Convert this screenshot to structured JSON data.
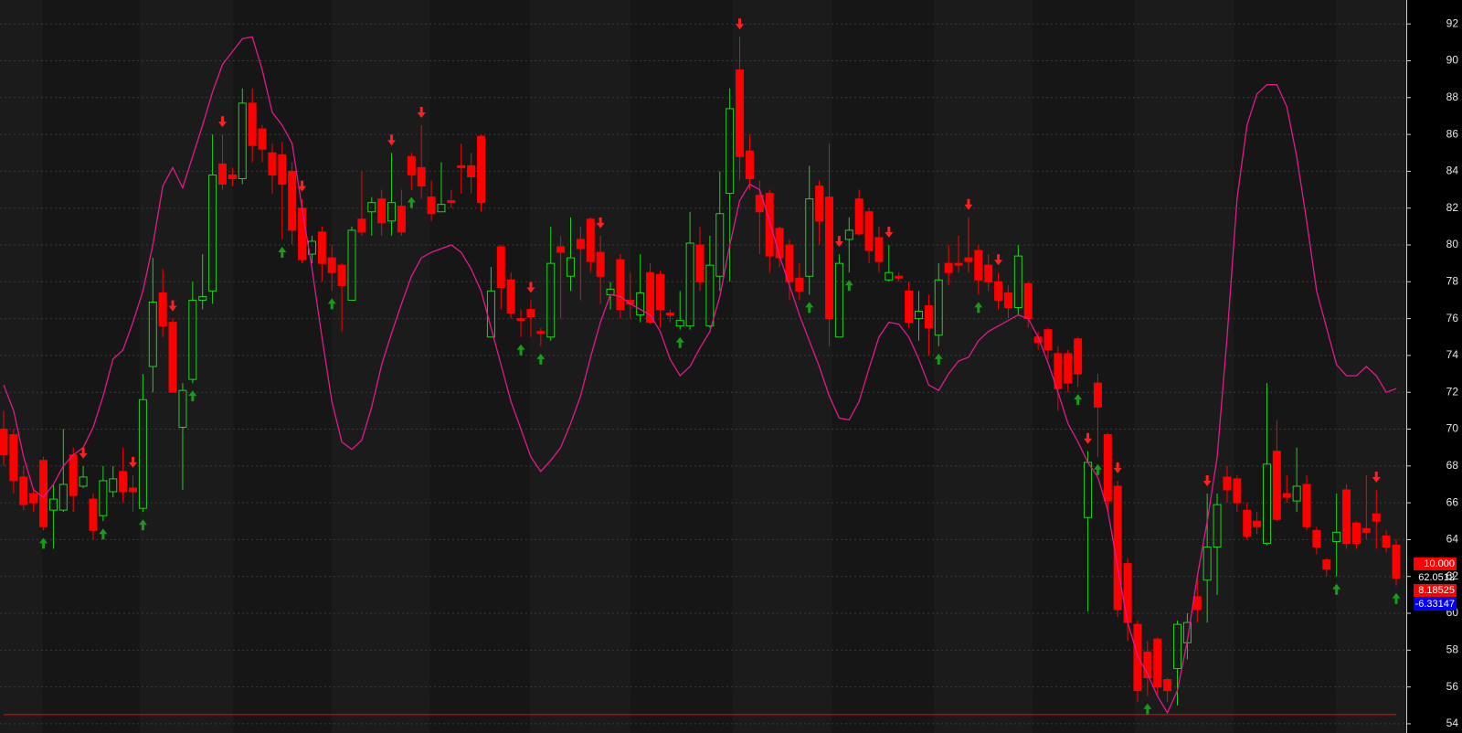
{
  "chart_data": {
    "type": "candlestick",
    "ylim": [
      53.5,
      93.3
    ],
    "yticks": [
      54,
      56,
      58,
      60,
      62,
      64,
      66,
      68,
      70,
      72,
      74,
      76,
      78,
      80,
      82,
      84,
      86,
      88,
      90,
      92
    ],
    "grid": true,
    "up_color": "#1ed21e",
    "down_color": "#ff0000",
    "open": [
      70,
      69.7,
      67.4,
      66.5,
      68.3,
      65.6,
      65.6,
      68.6,
      66.9,
      66.2,
      65.3,
      66.6,
      67.7,
      66.8,
      65.7,
      73.4,
      77.4,
      75.8,
      70.1,
      72.7,
      77,
      77.5,
      84.4,
      83.8,
      83.6,
      87.7,
      86.3,
      85,
      84.9,
      84,
      82,
      79.5,
      80.7,
      79.3,
      78.9,
      77,
      81.4,
      81.8,
      82.5,
      81.3,
      82.1,
      84.8,
      84.2,
      82.6,
      81.8,
      82.4,
      84.3,
      84.3,
      85.9,
      75,
      79.9,
      78.1,
      76,
      76.5,
      75.3,
      75,
      79.9,
      78.3,
      80.3,
      81.4,
      79.6,
      77.3,
      79.2,
      77,
      76.2,
      78.5,
      78.4,
      76.3,
      75.6,
      75.6,
      80,
      75.6,
      78.3,
      82.8,
      89.5,
      85.1,
      82.7,
      82.8,
      80.9,
      80,
      78.2,
      78.3,
      83.2,
      82.6,
      75,
      80.3,
      82.5,
      81.8,
      80.4,
      78.1,
      78.3,
      77.5,
      76,
      76.7,
      75.1,
      79,
      79,
      79.3,
      79.7,
      78.9,
      78,
      77.4,
      76.6,
      77.9,
      75,
      75.4,
      74.1,
      74.1,
      74.9,
      65.2,
      72.5,
      69.7,
      66.9,
      62.7,
      59.4,
      57.9,
      58.6,
      56.4,
      57,
      58.4,
      60.9,
      61.8,
      63.6,
      67.4,
      67.3,
      65.6,
      65,
      63.8,
      68.8,
      66.5,
      66.1,
      67,
      64.5,
      62.9,
      63.9,
      66.7,
      64.9,
      64.6,
      65.4,
      64.2,
      63.7
    ],
    "high": [
      71,
      70,
      68,
      66.8,
      68.5,
      67,
      70,
      69,
      68,
      66.5,
      68,
      68,
      69,
      67.5,
      73,
      79.3,
      78.7,
      76,
      72.5,
      78,
      79.5,
      86,
      86,
      84.2,
      88.5,
      88.5,
      86.5,
      85.5,
      85.6,
      84.5,
      82.5,
      80.5,
      81,
      80,
      79,
      81,
      84,
      82.6,
      83,
      85,
      83,
      85,
      86.5,
      83.5,
      84.5,
      83,
      85.5,
      85,
      86,
      78.8,
      80,
      78.5,
      76.5,
      77,
      75.5,
      81,
      80.5,
      81.5,
      81,
      81.5,
      80.5,
      78,
      79.5,
      78.5,
      79.5,
      79,
      78.6,
      76.5,
      77.5,
      81.8,
      81,
      80.5,
      84,
      88.5,
      91.3,
      86,
      83.5,
      83,
      81,
      80.3,
      79,
      84.3,
      83.5,
      85.5,
      79.5,
      81.5,
      83,
      82,
      81,
      80,
      78.5,
      78,
      77.5,
      77.3,
      79,
      80,
      80.5,
      81.5,
      80,
      79.5,
      78.5,
      77.8,
      80,
      78,
      75.3,
      75.5,
      74.5,
      74.3,
      75,
      68.8,
      73,
      69.8,
      67.2,
      63,
      59.6,
      58.5,
      58.7,
      56.5,
      59.6,
      60,
      62,
      66.5,
      66.5,
      68,
      67.5,
      66,
      65.5,
      72.5,
      70.5,
      67.5,
      69,
      67.5,
      64.7,
      63,
      66.5,
      67,
      65,
      67.5,
      66.7,
      64.5,
      64
    ],
    "low": [
      68,
      66.5,
      65.6,
      65.5,
      64.5,
      63.5,
      65.5,
      65.5,
      66.8,
      64,
      65,
      66.3,
      66,
      65.5,
      65.5,
      72,
      75,
      72,
      66.7,
      72.5,
      76.5,
      76.8,
      83,
      83.2,
      83.3,
      84.5,
      84.5,
      82.8,
      80.3,
      80,
      79,
      79,
      78,
      77.5,
      75.3,
      77,
      80.5,
      80.5,
      80.5,
      80.5,
      80.5,
      83,
      82.5,
      81.3,
      81.8,
      82,
      82.8,
      82.8,
      81.8,
      75,
      76.5,
      76,
      75,
      75,
      74.5,
      74.8,
      76,
      77.5,
      77,
      78.5,
      76.8,
      76.5,
      76,
      76,
      75.8,
      75.7,
      75.5,
      75.8,
      75.4,
      75.4,
      77.5,
      75.5,
      77.5,
      78,
      83.5,
      83,
      79.5,
      78.5,
      78.8,
      77,
      77,
      77.3,
      80,
      74.5,
      75,
      78.5,
      80.5,
      79,
      78.5,
      78,
      78,
      75.5,
      74.8,
      74,
      74.5,
      77.8,
      78.5,
      78.5,
      77.3,
      77.5,
      76.5,
      76,
      76.2,
      75.5,
      74.3,
      73.8,
      71,
      72,
      72.3,
      60.1,
      68.5,
      65.5,
      59.8,
      58.5,
      55.2,
      55.5,
      55.5,
      55.2,
      55,
      57.5,
      59.5,
      59.5,
      61,
      66,
      65.5,
      64,
      64.3,
      63.7,
      65,
      66,
      65.5,
      64.5,
      63.2,
      62,
      62,
      63.5,
      63.5,
      64,
      63.5,
      63.3,
      61.5
    ],
    "close": [
      68.6,
      67.2,
      65.9,
      66,
      64.7,
      66.2,
      67,
      66.4,
      67.4,
      64.5,
      67.2,
      67.3,
      66.6,
      66.6,
      71.6,
      76.9,
      75.6,
      72,
      72.1,
      77,
      77.2,
      83.8,
      83.3,
      83.6,
      87.7,
      85.4,
      85.2,
      83.8,
      83.3,
      80.8,
      79.2,
      80.2,
      79,
      78.5,
      77.8,
      80.8,
      80.7,
      82.3,
      81.2,
      82.3,
      80.7,
      83.8,
      83.2,
      81.7,
      82.2,
      82.3,
      84.2,
      83.7,
      82.3,
      77.5,
      77.7,
      76.3,
      75.9,
      76.1,
      75.2,
      79,
      79.6,
      79.3,
      79.8,
      79.1,
      78.3,
      77.6,
      76.5,
      76.8,
      77.4,
      75.8,
      76.5,
      76.2,
      75.9,
      80.1,
      78,
      78.9,
      81.7,
      87.4,
      84.8,
      83.6,
      81.8,
      79.4,
      79.3,
      78,
      77.5,
      82.5,
      81.3,
      76,
      79,
      80.8,
      80.6,
      79.7,
      79.1,
      78.5,
      78.2,
      75.8,
      76.4,
      75.5,
      78.1,
      78.5,
      78.9,
      79.1,
      78.1,
      78,
      77,
      76.6,
      79.4,
      76,
      74.7,
      74.3,
      72.2,
      72.5,
      73,
      68.2,
      71.2,
      66.1,
      60.2,
      59.5,
      55.8,
      56.5,
      56,
      55.8,
      59.4,
      59.5,
      60.2,
      63.6,
      65.9,
      66.7,
      66,
      64.2,
      64.7,
      68.1,
      65.1,
      66.3,
      66.9,
      64.7,
      63.6,
      62.4,
      64.4,
      63.8,
      63.8,
      64.4,
      65,
      63.6,
      61.9
    ],
    "line": {
      "color": "#e01a8c",
      "values": [
        72.4,
        71,
        68.5,
        66.7,
        66.3,
        67,
        68,
        68.6,
        69,
        70.1,
        71.8,
        73.8,
        74.3,
        75.8,
        77.5,
        80,
        83.2,
        84.2,
        83.1,
        84.8,
        86.5,
        88.3,
        89.8,
        90.5,
        91.2,
        91.3,
        89.5,
        87.2,
        86.5,
        85.5,
        82,
        78.7,
        75,
        71.5,
        69.3,
        68.9,
        69.4,
        71.2,
        73.5,
        75.2,
        76.8,
        78.3,
        79.3,
        79.6,
        79.8,
        80,
        79.6,
        78.7,
        77.5,
        75.5,
        73.5,
        71.5,
        70,
        68.5,
        67.7,
        68.3,
        69,
        70.3,
        71.8,
        73.9,
        75.8,
        77.3,
        77.2,
        76.8,
        76.5,
        76.2,
        75.3,
        73.8,
        72.9,
        73.4,
        74.4,
        75.3,
        77.2,
        80,
        82.4,
        83.3,
        83,
        81.3,
        79.4,
        77.8,
        76.2,
        74.8,
        73.4,
        71.8,
        70.6,
        70.5,
        71.5,
        73.3,
        75,
        75.8,
        75.7,
        75,
        73.8,
        72.4,
        72.1,
        73,
        73.7,
        73.9,
        74.8,
        75.3,
        75.6,
        75.9,
        76.2,
        76,
        75,
        73.6,
        72,
        70.3,
        69.3,
        68.2,
        67.4,
        65.6,
        62.5,
        59.5,
        57.7,
        56.7,
        55.5,
        54.6,
        55.8,
        58.5,
        62,
        65,
        68.5,
        75,
        82.5,
        86.5,
        88.2,
        88.7,
        88.7,
        87.5,
        84.8,
        81.3,
        77.5,
        75.5,
        73.5,
        72.9,
        72.9,
        73.4,
        72.9,
        72,
        72.2
      ]
    },
    "hline": {
      "value": 54.5,
      "color": "#ff0000"
    },
    "buy_signals": [
      4,
      10,
      14,
      19,
      28,
      33,
      41,
      52,
      54,
      68,
      81,
      85,
      94,
      98,
      108,
      110,
      115,
      134,
      140
    ],
    "sell_signals": [
      8,
      13,
      17,
      22,
      30,
      39,
      42,
      53,
      60,
      74,
      84,
      89,
      97,
      100,
      109,
      112,
      121,
      138
    ],
    "indicator_labels": [
      {
        "text": "10.000",
        "color": "#ff0000"
      },
      {
        "text": "62.0512",
        "color": "#000000"
      },
      {
        "text": "8.18525",
        "color": "#ff0000"
      },
      {
        "text": "-6.33147",
        "color": "#0000ff"
      }
    ]
  }
}
